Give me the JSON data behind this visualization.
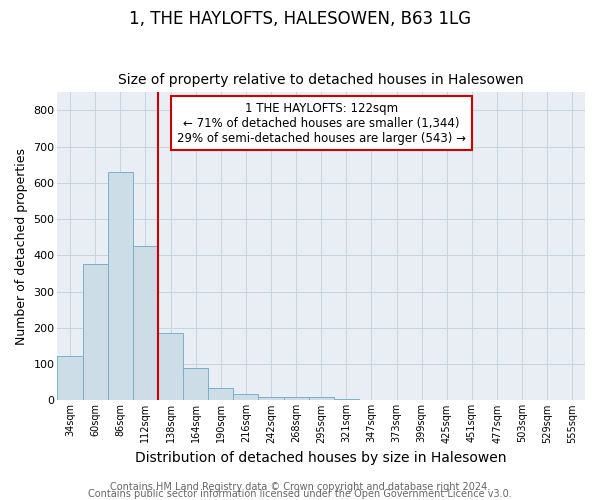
{
  "title": "1, THE HAYLOFTS, HALESOWEN, B63 1LG",
  "subtitle": "Size of property relative to detached houses in Halesowen",
  "xlabel": "Distribution of detached houses by size in Halesowen",
  "ylabel": "Number of detached properties",
  "bar_labels": [
    "34sqm",
    "60sqm",
    "86sqm",
    "112sqm",
    "138sqm",
    "164sqm",
    "190sqm",
    "216sqm",
    "242sqm",
    "268sqm",
    "295sqm",
    "321sqm",
    "347sqm",
    "373sqm",
    "399sqm",
    "425sqm",
    "451sqm",
    "477sqm",
    "503sqm",
    "529sqm",
    "555sqm"
  ],
  "bar_heights": [
    122,
    375,
    630,
    425,
    185,
    88,
    35,
    18,
    9,
    9,
    8,
    4,
    0,
    0,
    0,
    0,
    0,
    0,
    0,
    0,
    0
  ],
  "bar_color": "#ccdde8",
  "bar_edgecolor": "#7ab0cc",
  "bar_linewidth": 0.7,
  "red_line_x": 4.0,
  "red_line_color": "#cc0000",
  "annotation_text": "1 THE HAYLOFTS: 122sqm\n← 71% of detached houses are smaller (1,344)\n29% of semi-detached houses are larger (543) →",
  "annotation_box_color": "#ffffff",
  "annotation_box_edgecolor": "#cc0000",
  "ylim": [
    0,
    850
  ],
  "yticks": [
    0,
    100,
    200,
    300,
    400,
    500,
    600,
    700,
    800
  ],
  "grid_color": "#c8d4e0",
  "bg_color": "#e8eef4",
  "footer_line1": "Contains HM Land Registry data © Crown copyright and database right 2024.",
  "footer_line2": "Contains public sector information licensed under the Open Government Licence v3.0.",
  "title_fontsize": 12,
  "subtitle_fontsize": 10,
  "xlabel_fontsize": 10,
  "ylabel_fontsize": 9,
  "tick_fontsize": 7,
  "annotation_fontsize": 8.5,
  "footer_fontsize": 7
}
